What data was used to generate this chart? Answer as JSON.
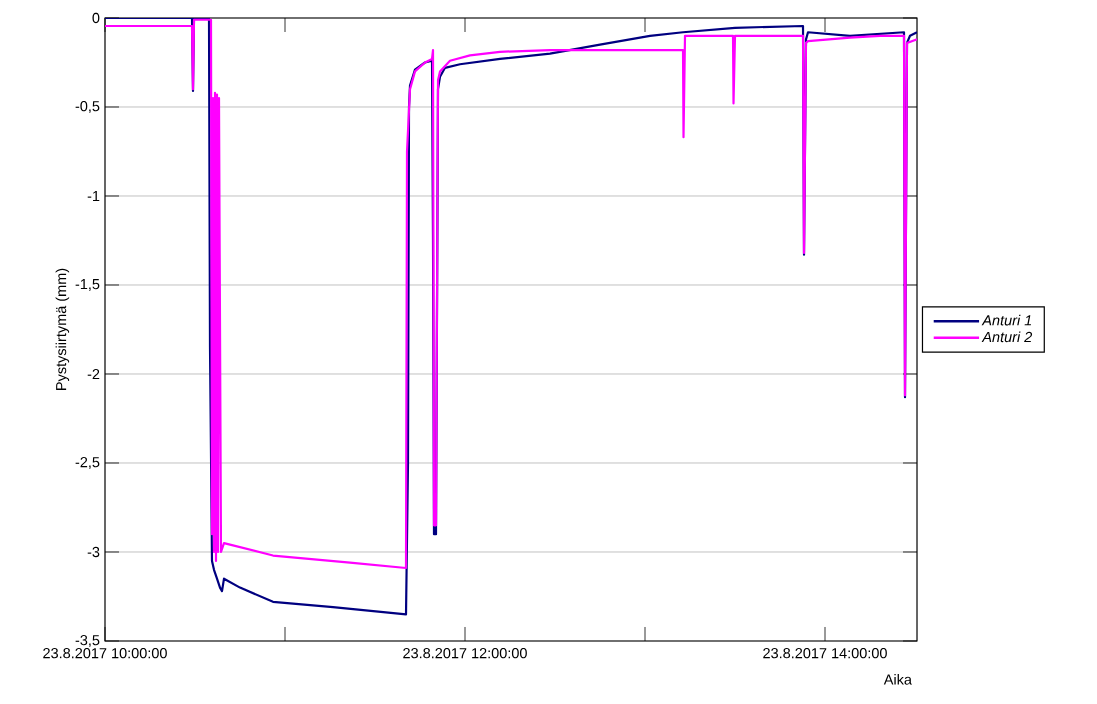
{
  "chart_data": {
    "type": "line",
    "xlabel": "Aika",
    "ylabel": "Pystysiirtymä (mm)",
    "xlim": [
      "2017-08-23T10:00:00",
      "2017-08-23T14:30:40"
    ],
    "ylim": [
      -3.5,
      0
    ],
    "xticks": [
      {
        "value": "2017-08-23T10:00:00",
        "label": "23.8.2017 10:00:00"
      },
      {
        "value": "2017-08-23T11:00:00",
        "label": null
      },
      {
        "value": "2017-08-23T12:00:00",
        "label": "23.8.2017 12:00:00"
      },
      {
        "value": "2017-08-23T13:00:00",
        "label": null
      },
      {
        "value": "2017-08-23T14:00:00",
        "label": "23.8.2017 14:00:00"
      }
    ],
    "yticks": [
      {
        "value": -3.5,
        "label": "-3,5"
      },
      -3,
      {
        "value": -2.5,
        "label": "-2,5"
      },
      -2,
      {
        "value": -1.5,
        "label": "-1,5"
      },
      -1,
      {
        "value": -0.5,
        "label": "-0,5"
      },
      0
    ],
    "grid": "y",
    "legend": "right",
    "series": [
      {
        "name": "Anturi 1",
        "color": "#000080",
        "x": [
          "2017-08-23T10:00:00",
          "2017-08-23T10:29:00",
          "2017-08-23T10:29:20",
          "2017-08-23T10:29:40",
          "2017-08-23T10:34:40",
          "2017-08-23T10:35:00",
          "2017-08-23T10:35:40",
          "2017-08-23T10:36:20",
          "2017-08-23T10:37:20",
          "2017-08-23T10:38:20",
          "2017-08-23T10:39:00",
          "2017-08-23T10:39:40",
          "2017-08-23T10:45:00",
          "2017-08-23T10:56:00",
          "2017-08-23T11:16:00",
          "2017-08-23T11:40:20",
          "2017-08-23T11:41:00",
          "2017-08-23T11:41:20",
          "2017-08-23T11:41:40",
          "2017-08-23T11:43:20",
          "2017-08-23T11:46:40",
          "2017-08-23T11:49:00",
          "2017-08-23T11:49:20",
          "2017-08-23T11:49:40",
          "2017-08-23T11:50:20",
          "2017-08-23T11:51:00",
          "2017-08-23T11:51:40",
          "2017-08-23T11:53:20",
          "2017-08-23T11:58:20",
          "2017-08-23T12:11:40",
          "2017-08-23T12:28:20",
          "2017-08-23T12:45:00",
          "2017-08-23T13:01:40",
          "2017-08-23T13:12:40",
          "2017-08-23T13:30:00",
          "2017-08-23T13:52:40",
          "2017-08-23T13:53:00",
          "2017-08-23T13:53:40",
          "2017-08-23T13:54:20",
          "2017-08-23T14:08:20",
          "2017-08-23T14:26:20",
          "2017-08-23T14:26:40",
          "2017-08-23T14:27:20",
          "2017-08-23T14:28:20",
          "2017-08-23T14:30:40"
        ],
        "values": [
          0,
          0,
          -0.41,
          0,
          0,
          -1.85,
          -3.05,
          -3.1,
          -3.15,
          -3.2,
          -3.22,
          -3.15,
          -3.2,
          -3.28,
          -3.31,
          -3.35,
          -2.5,
          -0.5,
          -0.38,
          -0.29,
          -0.25,
          -0.24,
          -1.25,
          -2.9,
          -2.9,
          -0.4,
          -0.33,
          -0.28,
          -0.26,
          -0.23,
          -0.2,
          -0.15,
          -0.1,
          -0.08,
          -0.055,
          -0.045,
          -1.33,
          -0.12,
          -0.08,
          -0.1,
          -0.08,
          -2.13,
          -0.14,
          -0.1,
          -0.08
        ]
      },
      {
        "name": "Anturi 2",
        "color": "#ff00ff",
        "x": [
          "2017-08-23T10:00:00",
          "2017-08-23T10:29:00",
          "2017-08-23T10:29:20",
          "2017-08-23T10:29:40",
          "2017-08-23T10:35:20",
          "2017-08-23T10:35:40",
          "2017-08-23T10:36:00",
          "2017-08-23T10:36:20",
          "2017-08-23T10:36:40",
          "2017-08-23T10:37:00",
          "2017-08-23T10:37:20",
          "2017-08-23T10:37:40",
          "2017-08-23T10:38:00",
          "2017-08-23T10:38:40",
          "2017-08-23T10:39:40",
          "2017-08-23T10:56:00",
          "2017-08-23T11:21:40",
          "2017-08-23T11:40:20",
          "2017-08-23T11:40:40",
          "2017-08-23T11:41:40",
          "2017-08-23T11:43:20",
          "2017-08-23T11:46:40",
          "2017-08-23T11:49:00",
          "2017-08-23T11:49:20",
          "2017-08-23T11:49:40",
          "2017-08-23T11:50:20",
          "2017-08-23T11:51:00",
          "2017-08-23T11:51:40",
          "2017-08-23T11:55:00",
          "2017-08-23T12:01:40",
          "2017-08-23T12:11:40",
          "2017-08-23T12:28:20",
          "2017-08-23T13:12:40",
          "2017-08-23T13:12:50",
          "2017-08-23T13:13:20",
          "2017-08-23T13:29:20",
          "2017-08-23T13:29:30",
          "2017-08-23T13:30:00",
          "2017-08-23T13:52:40",
          "2017-08-23T13:53:00",
          "2017-08-23T13:53:40",
          "2017-08-23T13:54:20",
          "2017-08-23T14:08:20",
          "2017-08-23T14:18:20",
          "2017-08-23T14:26:20",
          "2017-08-23T14:26:40",
          "2017-08-23T14:27:20",
          "2017-08-23T14:30:40"
        ],
        "values": [
          -0.045,
          -0.045,
          -0.4,
          -0.01,
          -0.01,
          -2.9,
          -0.45,
          -3.0,
          -0.42,
          -3.05,
          -0.43,
          -3.0,
          -0.45,
          -3.0,
          -2.95,
          -3.02,
          -3.06,
          -3.09,
          -0.75,
          -0.4,
          -0.3,
          -0.25,
          -0.23,
          -0.18,
          -2.85,
          -2.85,
          -0.35,
          -0.3,
          -0.24,
          -0.21,
          -0.19,
          -0.18,
          -0.18,
          -0.67,
          -0.1,
          -0.1,
          -0.48,
          -0.1,
          -0.1,
          -1.32,
          -0.14,
          -0.13,
          -0.11,
          -0.1,
          -0.1,
          -2.12,
          -0.14,
          -0.12
        ]
      }
    ]
  }
}
